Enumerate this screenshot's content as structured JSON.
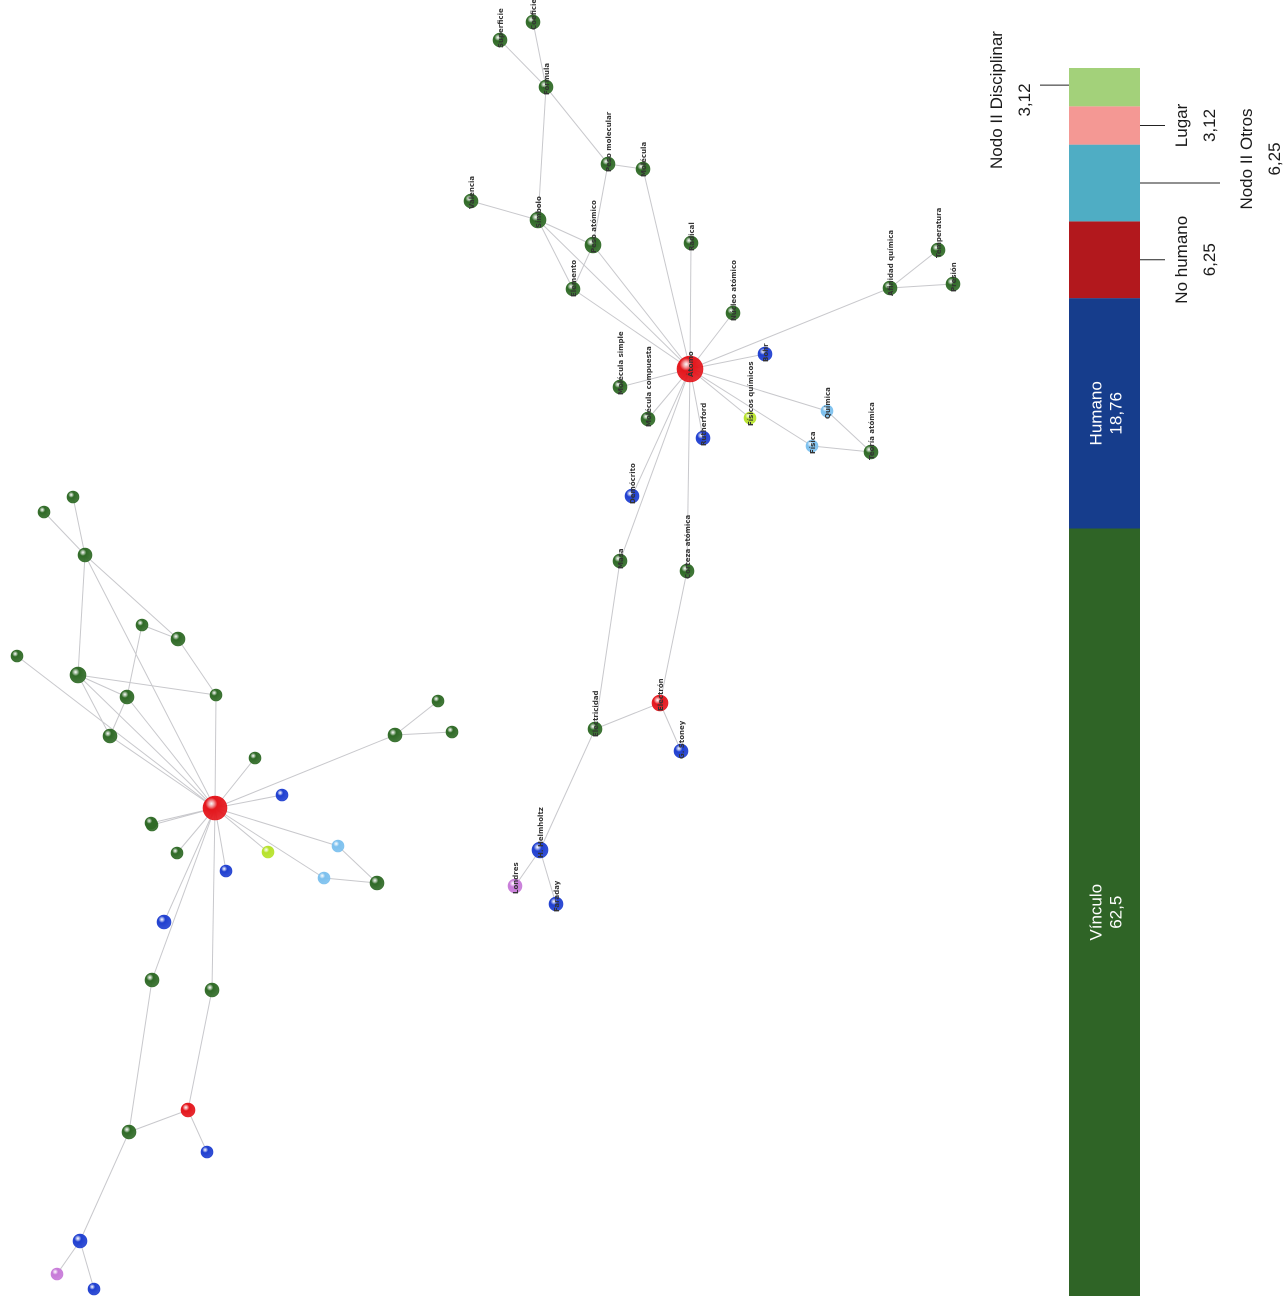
{
  "node_colors": {
    "vinculo": "#2f6a26",
    "humano": "#1f3fd0",
    "no_humano": "#e4161c",
    "otros": "#7cc0ee",
    "lugar": "#c77ad8",
    "disciplinar": "#b6e22a"
  },
  "network_labeled": {
    "nodes": [
      {
        "id": "atomo",
        "type": "no_humano",
        "label": "Átomo"
      },
      {
        "id": "superficie",
        "type": "vinculo",
        "label": "Superficie"
      },
      {
        "id": "coeficiente",
        "type": "vinculo",
        "label": "Coeficiente"
      },
      {
        "id": "formula",
        "type": "vinculo",
        "label": "Fórmula"
      },
      {
        "id": "peso_molecular",
        "type": "vinculo",
        "label": "Peso molecular"
      },
      {
        "id": "molecula",
        "type": "vinculo",
        "label": "Molécula"
      },
      {
        "id": "valencia",
        "type": "vinculo",
        "label": "Valencia"
      },
      {
        "id": "simbolo",
        "type": "vinculo",
        "label": "Símbolo"
      },
      {
        "id": "peso_atomico",
        "type": "vinculo",
        "label": "Peso atómico"
      },
      {
        "id": "radical",
        "type": "vinculo",
        "label": "Radical"
      },
      {
        "id": "elemento",
        "type": "vinculo",
        "label": "Elemento"
      },
      {
        "id": "temperatura",
        "type": "vinculo",
        "label": "Temperatura"
      },
      {
        "id": "afinidad",
        "type": "vinculo",
        "label": "Afinidad química"
      },
      {
        "id": "presion",
        "type": "vinculo",
        "label": "Presión"
      },
      {
        "id": "nucleo",
        "type": "vinculo",
        "label": "Núcleo atómico"
      },
      {
        "id": "bohr",
        "type": "humano",
        "label": "Bohr"
      },
      {
        "id": "mol_simple",
        "type": "vinculo",
        "label": "Molécula simple"
      },
      {
        "id": "mol_compuesta",
        "type": "vinculo",
        "label": "Molécula compuesta"
      },
      {
        "id": "fisicos_quimicos",
        "type": "disciplinar",
        "label": "Físicos químicos"
      },
      {
        "id": "quimica",
        "type": "otros",
        "label": "Química"
      },
      {
        "id": "rutherford",
        "type": "humano",
        "label": "Rutherford"
      },
      {
        "id": "fisica",
        "type": "otros",
        "label": "Física"
      },
      {
        "id": "teoria",
        "type": "vinculo",
        "label": "Teoría atómica"
      },
      {
        "id": "democrito",
        "type": "humano",
        "label": "Demócrito"
      },
      {
        "id": "corteza",
        "type": "vinculo",
        "label": "Corteza atómica"
      },
      {
        "id": "masa",
        "type": "vinculo",
        "label": "Masa"
      },
      {
        "id": "electron",
        "type": "no_humano",
        "label": "Electrón"
      },
      {
        "id": "electricidad",
        "type": "vinculo",
        "label": "Electricidad"
      },
      {
        "id": "stoney",
        "type": "humano",
        "label": "G. Stoney"
      },
      {
        "id": "helmholtz",
        "type": "humano",
        "label": "H. Helmholtz"
      },
      {
        "id": "londres",
        "type": "lugar",
        "label": "Londres"
      },
      {
        "id": "faraday",
        "type": "humano",
        "label": "Faraday"
      }
    ],
    "edges": [
      [
        "superficie",
        "formula"
      ],
      [
        "coeficiente",
        "formula"
      ],
      [
        "formula",
        "simbolo"
      ],
      [
        "formula",
        "peso_molecular"
      ],
      [
        "peso_molecular",
        "molecula"
      ],
      [
        "peso_molecular",
        "peso_atomico"
      ],
      [
        "valencia",
        "simbolo"
      ],
      [
        "simbolo",
        "peso_atomico"
      ],
      [
        "simbolo",
        "elemento"
      ],
      [
        "peso_atomico",
        "elemento"
      ],
      [
        "molecula",
        "atomo"
      ],
      [
        "radical",
        "atomo"
      ],
      [
        "simbolo",
        "atomo"
      ],
      [
        "elemento",
        "atomo"
      ],
      [
        "peso_atomico",
        "atomo"
      ],
      [
        "afinidad",
        "atomo"
      ],
      [
        "afinidad",
        "temperatura"
      ],
      [
        "afinidad",
        "presion"
      ],
      [
        "nucleo",
        "atomo"
      ],
      [
        "bohr",
        "atomo"
      ],
      [
        "mol_simple",
        "atomo"
      ],
      [
        "mol_compuesta",
        "atomo"
      ],
      [
        "fisicos_quimicos",
        "atomo"
      ],
      [
        "quimica",
        "atomo"
      ],
      [
        "quimica",
        "teoria"
      ],
      [
        "fisica",
        "atomo"
      ],
      [
        "fisica",
        "teoria"
      ],
      [
        "rutherford",
        "atomo"
      ],
      [
        "democrito",
        "atomo"
      ],
      [
        "masa",
        "atomo"
      ],
      [
        "corteza",
        "atomo"
      ],
      [
        "corteza",
        "electron"
      ],
      [
        "masa",
        "electricidad"
      ],
      [
        "electricidad",
        "electron"
      ],
      [
        "electron",
        "stoney"
      ],
      [
        "electricidad",
        "helmholtz"
      ],
      [
        "helmholtz",
        "londres"
      ],
      [
        "helmholtz",
        "faraday"
      ]
    ]
  },
  "network_unlabeled": {
    "nodes": [
      {
        "id": "u_center",
        "type": "no_humano"
      },
      {
        "id": "u1",
        "type": "vinculo"
      },
      {
        "id": "u2",
        "type": "vinculo"
      },
      {
        "id": "u3",
        "type": "vinculo"
      },
      {
        "id": "u4",
        "type": "vinculo"
      },
      {
        "id": "u5",
        "type": "vinculo"
      },
      {
        "id": "u6",
        "type": "vinculo"
      },
      {
        "id": "u7",
        "type": "vinculo"
      },
      {
        "id": "u8",
        "type": "vinculo"
      },
      {
        "id": "u9",
        "type": "vinculo"
      },
      {
        "id": "u10",
        "type": "vinculo"
      },
      {
        "id": "u11",
        "type": "vinculo"
      },
      {
        "id": "u12",
        "type": "vinculo"
      },
      {
        "id": "u13",
        "type": "vinculo"
      },
      {
        "id": "u14",
        "type": "vinculo"
      },
      {
        "id": "u15",
        "type": "vinculo"
      },
      {
        "id": "u16",
        "type": "humano"
      },
      {
        "id": "u17",
        "type": "vinculo"
      },
      {
        "id": "u18",
        "type": "vinculo"
      },
      {
        "id": "u19",
        "type": "disciplinar"
      },
      {
        "id": "u20",
        "type": "otros"
      },
      {
        "id": "u21",
        "type": "humano"
      },
      {
        "id": "u22",
        "type": "otros"
      },
      {
        "id": "u23",
        "type": "vinculo"
      },
      {
        "id": "u24",
        "type": "humano"
      },
      {
        "id": "u25",
        "type": "vinculo"
      },
      {
        "id": "u26",
        "type": "vinculo"
      },
      {
        "id": "u27",
        "type": "no_humano"
      },
      {
        "id": "u28",
        "type": "vinculo"
      },
      {
        "id": "u29",
        "type": "humano"
      },
      {
        "id": "u30",
        "type": "humano"
      },
      {
        "id": "u31",
        "type": "lugar"
      },
      {
        "id": "u32",
        "type": "humano"
      }
    ],
    "edges": [
      [
        "u1",
        "u3"
      ],
      [
        "u2",
        "u3"
      ],
      [
        "u3",
        "u7"
      ],
      [
        "u3",
        "u5"
      ],
      [
        "u4",
        "u5"
      ],
      [
        "u4",
        "u8"
      ],
      [
        "u5",
        "u6"
      ],
      [
        "u6",
        "u7"
      ],
      [
        "u7",
        "u8"
      ],
      [
        "u7",
        "u10"
      ],
      [
        "u8",
        "u10"
      ],
      [
        "u6",
        "u_center"
      ],
      [
        "u7",
        "u_center"
      ],
      [
        "u8",
        "u_center"
      ],
      [
        "u10",
        "u_center"
      ],
      [
        "u9",
        "u_center"
      ],
      [
        "u3",
        "u_center"
      ],
      [
        "u11",
        "u_center"
      ],
      [
        "u12",
        "u_center"
      ],
      [
        "u12",
        "u13"
      ],
      [
        "u12",
        "u14"
      ],
      [
        "u16",
        "u_center"
      ],
      [
        "u15",
        "u_center"
      ],
      [
        "u17",
        "u_center"
      ],
      [
        "u18",
        "u_center"
      ],
      [
        "u19",
        "u_center"
      ],
      [
        "u20",
        "u_center"
      ],
      [
        "u20",
        "u23"
      ],
      [
        "u22",
        "u_center"
      ],
      [
        "u22",
        "u23"
      ],
      [
        "u21",
        "u_center"
      ],
      [
        "u24",
        "u_center"
      ],
      [
        "u25",
        "u_center"
      ],
      [
        "u26",
        "u_center"
      ],
      [
        "u26",
        "u27"
      ],
      [
        "u25",
        "u28"
      ],
      [
        "u28",
        "u27"
      ],
      [
        "u27",
        "u29"
      ],
      [
        "u28",
        "u30"
      ],
      [
        "u30",
        "u31"
      ],
      [
        "u30",
        "u32"
      ]
    ]
  },
  "bar": {
    "segments": [
      {
        "key": "vinculo",
        "name": "Vínculo",
        "value": 62.5,
        "value_label": "62,5",
        "color": "#2f6426"
      },
      {
        "key": "humano",
        "name": "Humano",
        "value": 18.76,
        "value_label": "18,76",
        "color": "#163d8c"
      },
      {
        "key": "no_humano",
        "name": "No humano",
        "value": 6.25,
        "value_label": "6,25",
        "color": "#b2181d"
      },
      {
        "key": "otros",
        "name": "Nodo II Otros",
        "value": 6.25,
        "value_label": "6,25",
        "color": "#4fadc4"
      },
      {
        "key": "lugar",
        "name": "Lugar",
        "value": 3.12,
        "value_label": "3,12",
        "color": "#f49894"
      },
      {
        "key": "disciplinar",
        "name": "Nodo II Disciplinar",
        "value": 3.12,
        "value_label": "3,12",
        "color": "#a3d17a"
      }
    ]
  }
}
